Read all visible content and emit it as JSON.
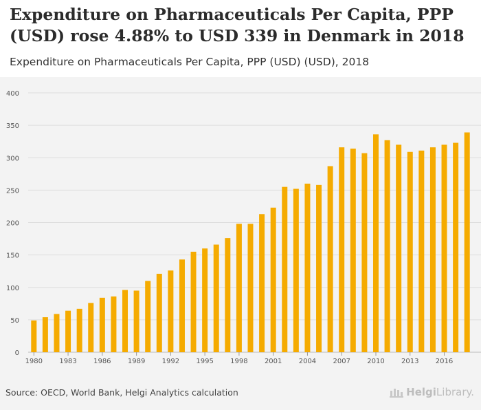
{
  "header": {
    "title": "Expenditure on Pharmaceuticals Per Capita, PPP (USD) rose 4.88% to USD 339 in Denmark in 2018",
    "subtitle": "Expenditure on Pharmaceuticals Per Capita, PPP (USD) (USD), 2018"
  },
  "footer": {
    "source": "Source: OECD, World Bank, Helgi Analytics calculation",
    "brand_part1": "Helgi",
    "brand_part2": "Library."
  },
  "colors": {
    "bar": "#f5ab00",
    "grid": "#dddddd",
    "panel": "#f3f3f3",
    "axis_text": "#555555"
  },
  "chart_data": {
    "type": "bar",
    "title": "",
    "xlabel": "",
    "ylabel": "",
    "ylim": [
      0,
      400
    ],
    "yticks": [
      0,
      50,
      100,
      150,
      200,
      250,
      300,
      350,
      400
    ],
    "grid": true,
    "categories": [
      "1980",
      "1981",
      "1982",
      "1983",
      "1984",
      "1985",
      "1986",
      "1987",
      "1988",
      "1989",
      "1990",
      "1991",
      "1992",
      "1993",
      "1994",
      "1995",
      "1996",
      "1997",
      "1998",
      "1999",
      "2000",
      "2001",
      "2002",
      "2003",
      "2004",
      "2005",
      "2006",
      "2007",
      "2008",
      "2009",
      "2010",
      "2011",
      "2012",
      "2013",
      "2014",
      "2015",
      "2016",
      "2017",
      "2018"
    ],
    "xtick_labels": [
      "1980",
      "1983",
      "1986",
      "1989",
      "1992",
      "1995",
      "1998",
      "2001",
      "2004",
      "2007",
      "2010",
      "2013",
      "2016"
    ],
    "values": [
      49,
      54,
      59,
      64,
      67,
      76,
      84,
      86,
      96,
      95,
      110,
      121,
      126,
      143,
      155,
      160,
      166,
      176,
      198,
      198,
      213,
      223,
      255,
      252,
      260,
      258,
      287,
      316,
      314,
      307,
      336,
      327,
      320,
      309,
      311,
      316,
      320,
      323,
      339
    ]
  }
}
